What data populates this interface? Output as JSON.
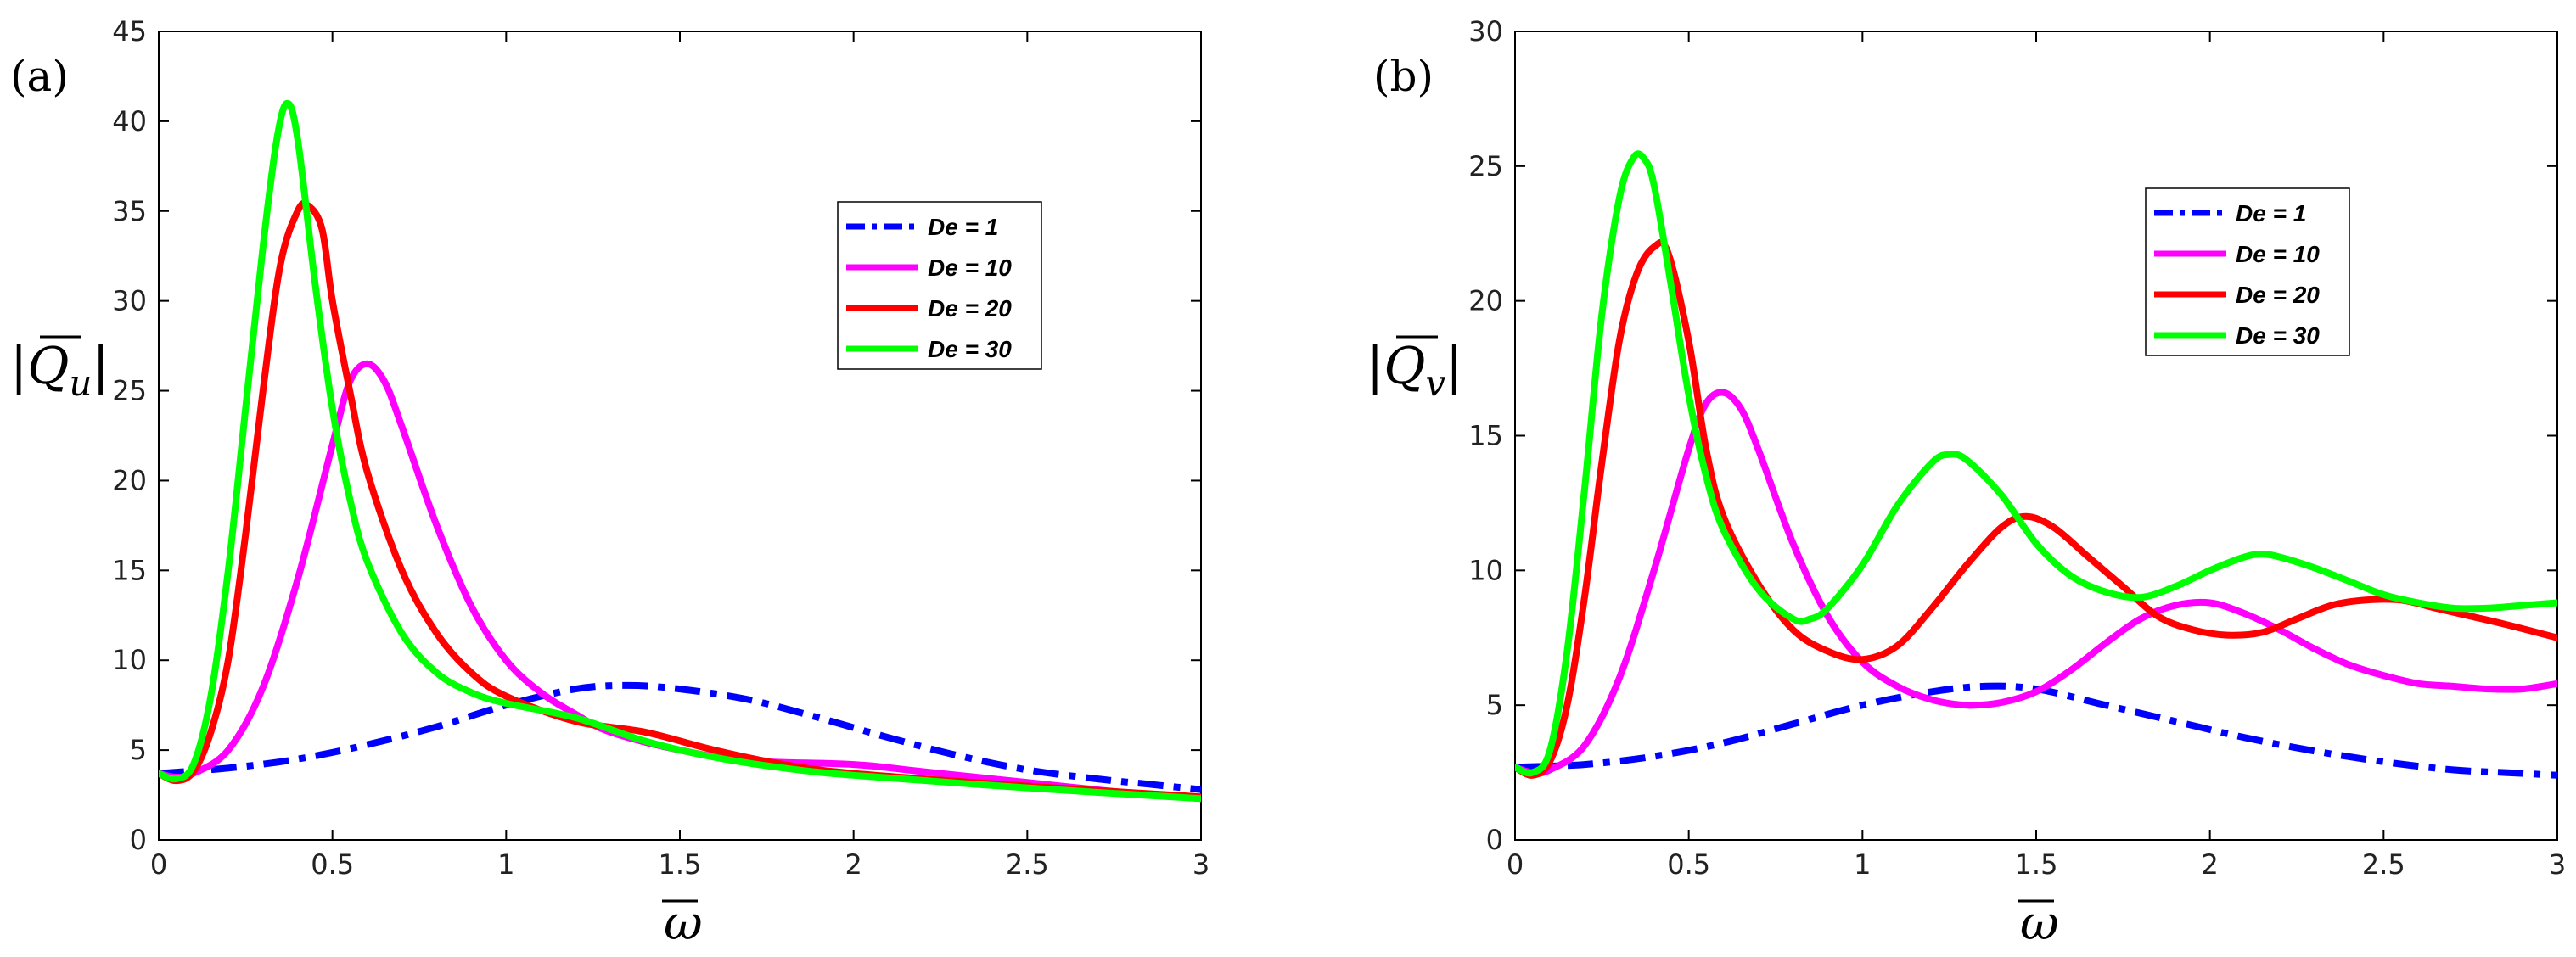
{
  "chart_data": [
    {
      "type": "line",
      "panel_label": "(a)",
      "ylabel": "|Q",
      "ylabel_sub": "u",
      "xlabel": "ω",
      "xlim": [
        0,
        3
      ],
      "ylim": [
        0,
        45
      ],
      "xticks": [
        "0",
        "0.5",
        "1",
        "1.5",
        "2",
        "2.5",
        "3"
      ],
      "yticks": [
        "0",
        "5",
        "10",
        "15",
        "20",
        "25",
        "30",
        "35",
        "40",
        "45"
      ],
      "legend_position": "top-right",
      "series": [
        {
          "name": "De = 1",
          "color": "#0000ff",
          "style": "dashdot",
          "x": [
            0,
            0.2,
            0.4,
            0.6,
            0.8,
            1.0,
            1.2,
            1.35,
            1.5,
            1.7,
            1.9,
            2.1,
            2.3,
            2.5,
            2.7,
            2.85,
            3.0
          ],
          "y": [
            3.7,
            4.0,
            4.5,
            5.3,
            6.3,
            7.5,
            8.4,
            8.6,
            8.4,
            7.8,
            6.8,
            5.7,
            4.7,
            3.9,
            3.4,
            3.1,
            2.8
          ]
        },
        {
          "name": "De = 10",
          "color": "#ff00ff",
          "style": "solid",
          "x": [
            0,
            0.05,
            0.1,
            0.2,
            0.3,
            0.4,
            0.5,
            0.55,
            0.6,
            0.65,
            0.7,
            0.8,
            0.9,
            1.0,
            1.1,
            1.2,
            1.3,
            1.5,
            1.7,
            2.0,
            2.2,
            2.5,
            2.8,
            3.0
          ],
          "y": [
            3.7,
            3.5,
            3.7,
            5,
            8.5,
            14.5,
            22,
            25.5,
            26.5,
            25.5,
            23,
            17.5,
            13,
            10,
            8.2,
            7,
            6,
            5,
            4.4,
            4.2,
            3.8,
            3.2,
            2.6,
            2.3
          ]
        },
        {
          "name": "De = 20",
          "color": "#ff0000",
          "style": "solid",
          "x": [
            0,
            0.05,
            0.1,
            0.15,
            0.2,
            0.25,
            0.3,
            0.35,
            0.4,
            0.43,
            0.47,
            0.5,
            0.55,
            0.6,
            0.7,
            0.8,
            0.9,
            1.0,
            1.2,
            1.4,
            1.6,
            1.8,
            2.0,
            2.5,
            3.0
          ],
          "y": [
            3.7,
            3.3,
            3.8,
            6,
            10,
            17,
            25,
            32,
            35,
            35.3,
            34,
            30,
            25,
            20.5,
            15,
            11.5,
            9.3,
            8,
            6.6,
            6,
            5,
            4.2,
            3.7,
            3.0,
            2.4
          ]
        },
        {
          "name": "De = 30",
          "color": "#00ff00",
          "style": "solid",
          "x": [
            0,
            0.05,
            0.1,
            0.15,
            0.2,
            0.25,
            0.3,
            0.34,
            0.37,
            0.4,
            0.45,
            0.5,
            0.55,
            0.6,
            0.7,
            0.8,
            0.9,
            1.0,
            1.2,
            1.4,
            1.6,
            1.8,
            2.0,
            2.5,
            3.0
          ],
          "y": [
            3.7,
            3.4,
            4.2,
            8,
            15,
            24,
            33,
            39,
            41,
            39,
            31,
            24,
            19,
            15.5,
            11.5,
            9.3,
            8.2,
            7.6,
            6.8,
            5.5,
            4.6,
            4.0,
            3.6,
            2.9,
            2.3
          ]
        }
      ]
    },
    {
      "type": "line",
      "panel_label": "(b)",
      "ylabel": "|Q",
      "ylabel_sub": "v",
      "xlabel": "ω",
      "xlim": [
        0,
        3
      ],
      "ylim": [
        0,
        30
      ],
      "xticks": [
        "0",
        "0.5",
        "1",
        "1.5",
        "2",
        "2.5",
        "3"
      ],
      "yticks": [
        "0",
        "5",
        "10",
        "15",
        "20",
        "25",
        "30"
      ],
      "legend_position": "top-right",
      "series": [
        {
          "name": "De = 1",
          "color": "#0000ff",
          "style": "dashdot",
          "x": [
            0,
            0.2,
            0.4,
            0.6,
            0.8,
            1.0,
            1.2,
            1.35,
            1.5,
            1.7,
            1.9,
            2.1,
            2.3,
            2.5,
            2.7,
            2.85,
            3.0
          ],
          "y": [
            2.7,
            2.8,
            3.1,
            3.6,
            4.3,
            5.0,
            5.5,
            5.7,
            5.6,
            5.0,
            4.4,
            3.8,
            3.3,
            2.9,
            2.6,
            2.5,
            2.4
          ]
        },
        {
          "name": "De = 10",
          "color": "#ff00ff",
          "style": "solid",
          "x": [
            0,
            0.05,
            0.1,
            0.2,
            0.3,
            0.4,
            0.5,
            0.55,
            0.6,
            0.65,
            0.7,
            0.8,
            0.9,
            1.0,
            1.1,
            1.2,
            1.3,
            1.4,
            1.5,
            1.6,
            1.7,
            1.8,
            1.9,
            2.0,
            2.1,
            2.2,
            2.3,
            2.4,
            2.5,
            2.6,
            2.7,
            2.8,
            2.9,
            3.0
          ],
          "y": [
            2.7,
            2.5,
            2.6,
            3.5,
            6,
            10,
            14.5,
            16.2,
            16.6,
            16,
            14.5,
            11,
            8.3,
            6.6,
            5.7,
            5.2,
            5.0,
            5.1,
            5.5,
            6.3,
            7.3,
            8.2,
            8.7,
            8.8,
            8.4,
            7.8,
            7.1,
            6.5,
            6.1,
            5.8,
            5.7,
            5.6,
            5.6,
            5.8
          ]
        },
        {
          "name": "De = 20",
          "color": "#ff0000",
          "style": "solid",
          "x": [
            0,
            0.05,
            0.1,
            0.15,
            0.2,
            0.25,
            0.3,
            0.35,
            0.4,
            0.44,
            0.5,
            0.55,
            0.6,
            0.7,
            0.8,
            0.9,
            1.0,
            1.1,
            1.2,
            1.3,
            1.4,
            1.47,
            1.55,
            1.65,
            1.75,
            1.85,
            1.95,
            2.05,
            2.15,
            2.25,
            2.35,
            2.45,
            2.55,
            2.65,
            2.75,
            2.85,
            3.0
          ],
          "y": [
            2.7,
            2.4,
            2.9,
            5,
            9,
            14,
            18.5,
            21,
            22,
            21.8,
            18.5,
            14.5,
            12,
            9.5,
            7.8,
            7,
            6.7,
            7.2,
            8.6,
            10.2,
            11.6,
            12,
            11.6,
            10.5,
            9.4,
            8.3,
            7.8,
            7.6,
            7.7,
            8.2,
            8.7,
            8.9,
            8.9,
            8.6,
            8.3,
            8.0,
            7.5
          ]
        },
        {
          "name": "De = 30",
          "color": "#00ff00",
          "style": "solid",
          "x": [
            0,
            0.05,
            0.1,
            0.15,
            0.2,
            0.25,
            0.3,
            0.34,
            0.37,
            0.4,
            0.45,
            0.5,
            0.55,
            0.6,
            0.7,
            0.8,
            0.85,
            0.9,
            1.0,
            1.1,
            1.2,
            1.25,
            1.3,
            1.4,
            1.5,
            1.6,
            1.7,
            1.8,
            1.9,
            2.0,
            2.1,
            2.15,
            2.2,
            2.3,
            2.4,
            2.5,
            2.6,
            2.7,
            2.8,
            2.9,
            3.0
          ],
          "y": [
            2.7,
            2.5,
            3.3,
            7,
            13,
            19.5,
            23.8,
            25.3,
            25.3,
            24.3,
            20.5,
            16.5,
            13.5,
            11.5,
            9.3,
            8.2,
            8.2,
            8.6,
            10.2,
            12.4,
            14,
            14.3,
            14.1,
            12.8,
            11,
            9.8,
            9.2,
            9.0,
            9.4,
            10.0,
            10.5,
            10.6,
            10.5,
            10.1,
            9.6,
            9.1,
            8.8,
            8.6,
            8.6,
            8.7,
            8.8
          ]
        }
      ]
    }
  ]
}
